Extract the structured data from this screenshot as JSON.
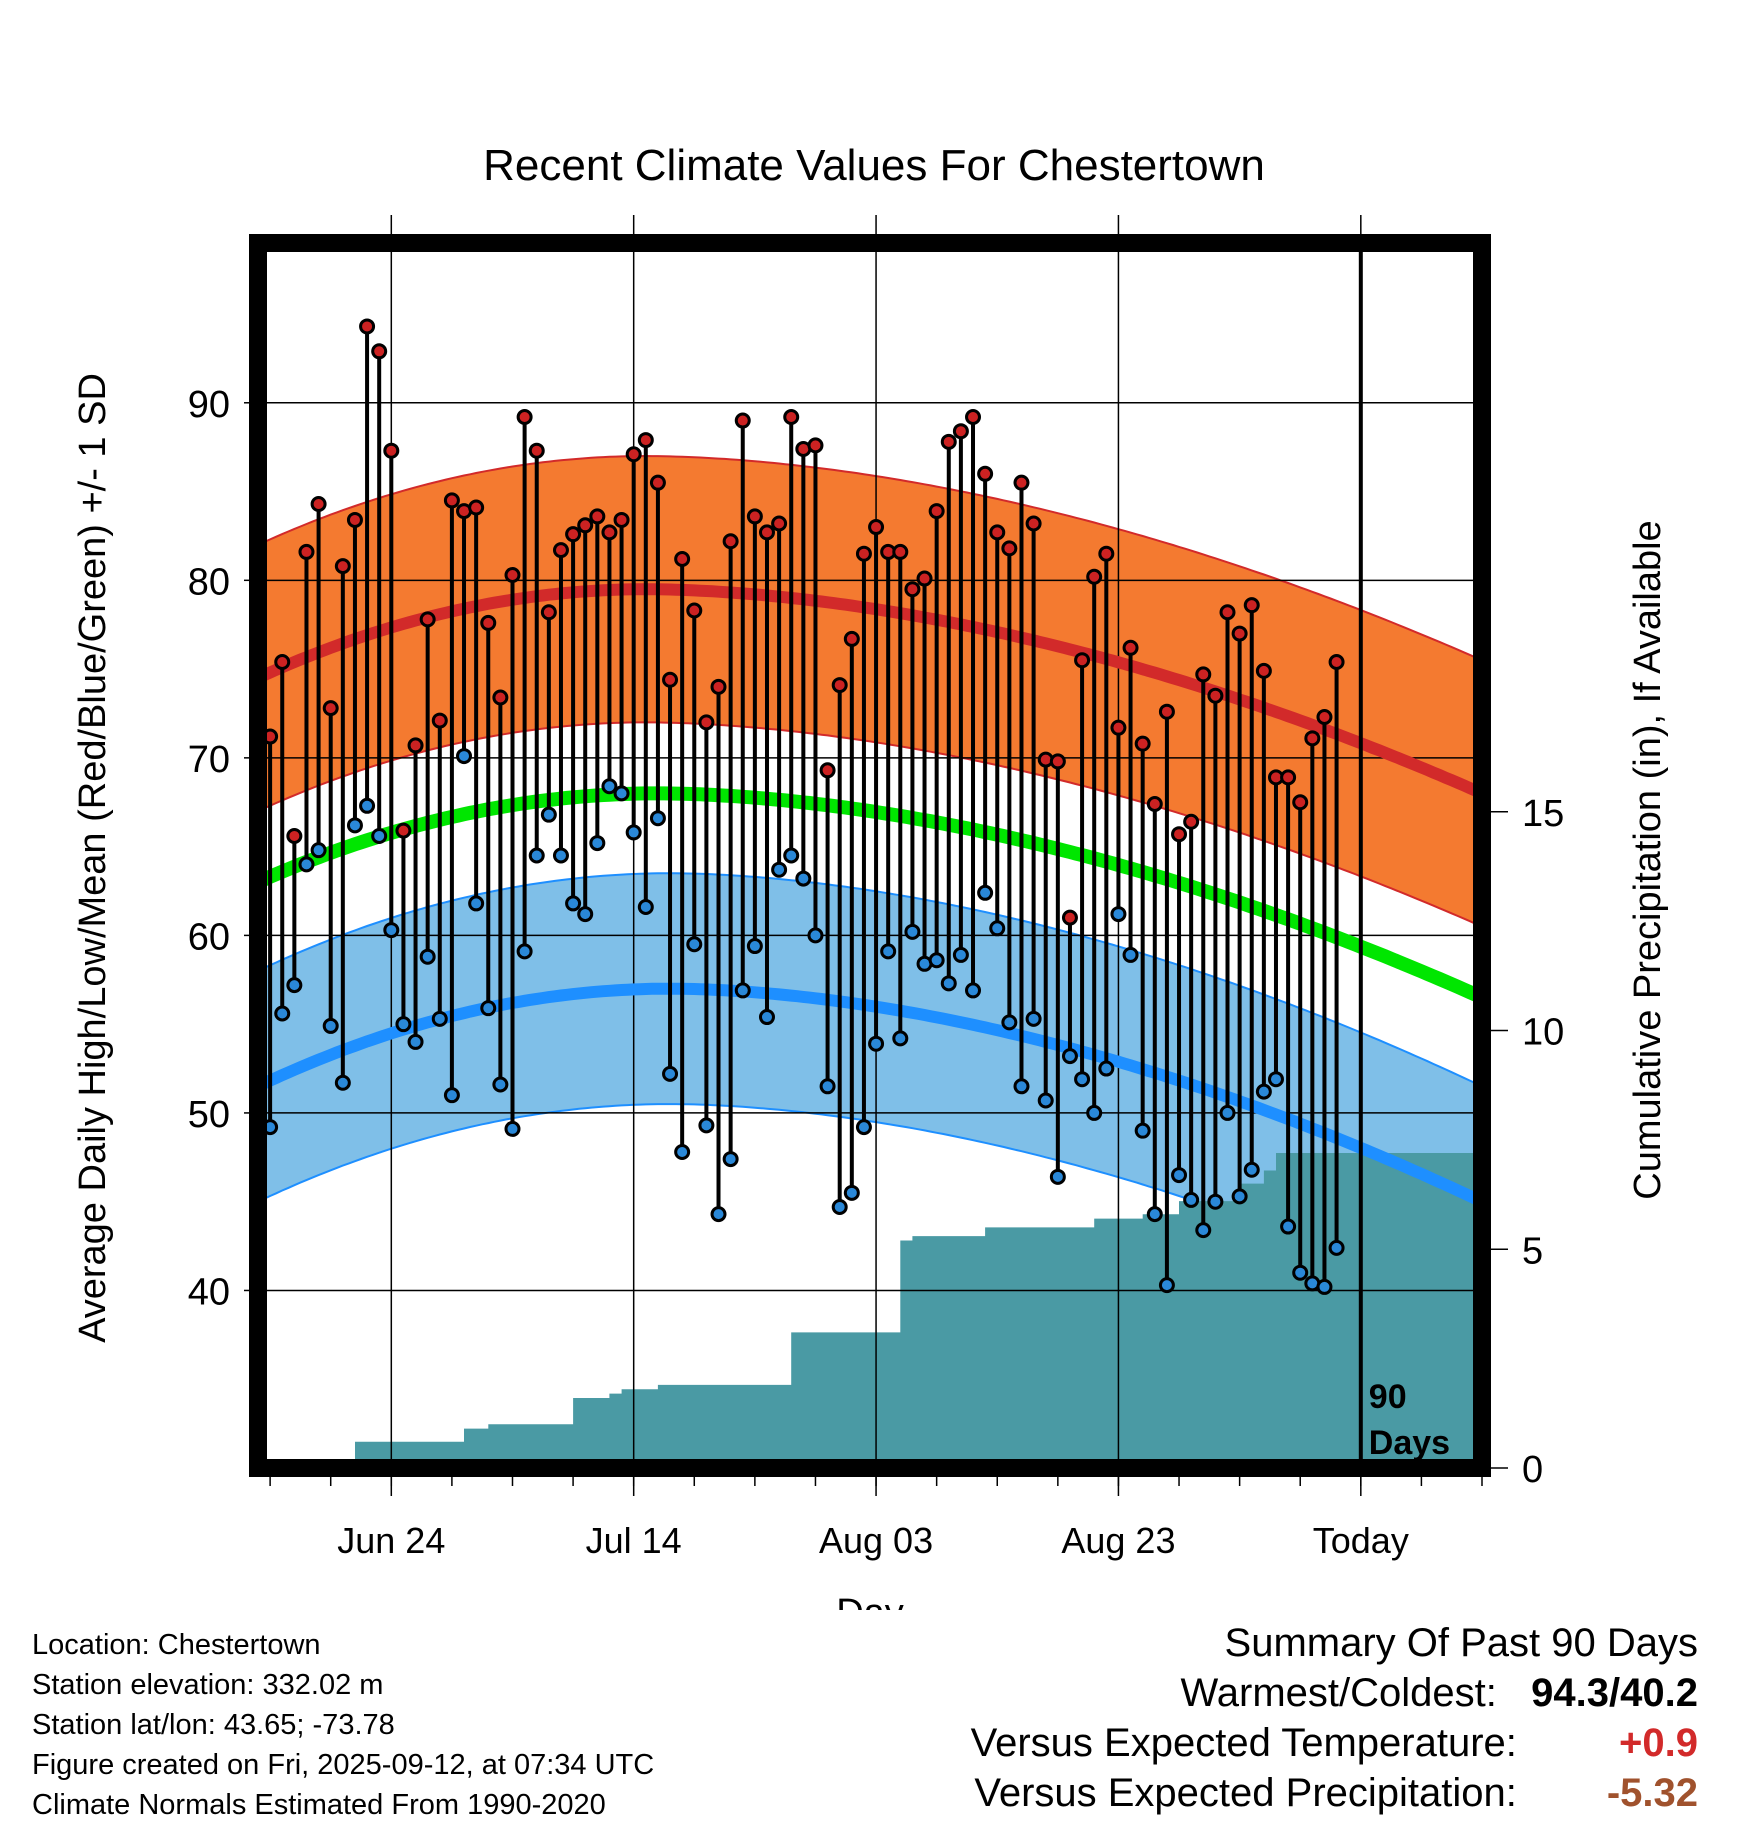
{
  "chart_data": {
    "type": "line",
    "title": "Recent Climate Values For Chestertown",
    "xlabel": "Day",
    "ylabel": "Average Daily High/Low/Mean (Red/Blue/Green) +/- 1 SD",
    "y2label": "Cumulative Precipitation (in), If Available",
    "ylim": [
      30,
      99
    ],
    "y2lim": [
      0,
      28
    ],
    "y_ticks": [
      "40",
      "50",
      "60",
      "70",
      "80",
      "90"
    ],
    "y_tick_values": [
      40,
      50,
      60,
      70,
      80,
      90
    ],
    "y2_ticks": [
      "0",
      "5",
      "10",
      "15"
    ],
    "y2_tick_values": [
      0,
      5,
      10,
      15
    ],
    "x_tick_labels": [
      "Jun 24",
      "Jul 14",
      "Aug 03",
      "Aug 23",
      "Today"
    ],
    "x_tick_days": [
      12,
      32,
      52,
      72,
      92
    ],
    "x_range_days": [
      1,
      102
    ],
    "today_marker_label": "90 Days",
    "colors": {
      "high_band": "#f47a30",
      "high_line": "#d22a2a",
      "low_band": "#7fbfe8",
      "low_line": "#1e8fff",
      "mean_line": "#00e600",
      "precip_fill": "#4a9aa4",
      "high_dot": "#cc2222",
      "low_dot": "#2a88d8"
    },
    "normals": {
      "high_mean_endpoints": {
        "start": 74.5,
        "peak": 79.5,
        "peak_day": 33,
        "end": 68.0
      },
      "high_sd": 7.5,
      "low_mean_endpoints": {
        "start": 51.5,
        "peak": 57.0,
        "peak_day": 35,
        "end": 45.0
      },
      "low_sd": 6.5,
      "mean_line_endpoints": {
        "start": 63.0,
        "peak": 68.0,
        "peak_day": 34,
        "end": 56.5
      }
    },
    "series": [
      {
        "name": "Daily High",
        "values": [
          66.5,
          71.2,
          75.4,
          65.6,
          81.6,
          84.3,
          72.8,
          80.8,
          83.4,
          94.3,
          92.9,
          87.3,
          65.9,
          70.7,
          77.8,
          72.1,
          84.5,
          83.9,
          84.1,
          77.6,
          73.4,
          80.3,
          89.2,
          87.3,
          78.2,
          81.7,
          82.6,
          83.1,
          83.6,
          82.7,
          83.4,
          87.1,
          87.9,
          85.5,
          74.4,
          81.2,
          78.3,
          72.0,
          74.0,
          82.2,
          89.0,
          83.6,
          82.7,
          83.2,
          89.2,
          87.4,
          87.6,
          69.3,
          74.1,
          76.7,
          81.5,
          83.0,
          81.6,
          81.6,
          79.5,
          80.1,
          83.9,
          87.8,
          88.4,
          89.2,
          86.0,
          82.7,
          81.8,
          85.5,
          83.2,
          69.9,
          69.8,
          61.0,
          75.5,
          80.2,
          81.5,
          71.7,
          76.2,
          70.8,
          67.4,
          72.6,
          65.7,
          66.4,
          74.7,
          73.5,
          78.2,
          77.0,
          78.6,
          74.9,
          68.9,
          68.9,
          67.5,
          71.1,
          72.3,
          75.4
        ]
      },
      {
        "name": "Daily Low",
        "values": [
          49.1,
          49.2,
          55.6,
          57.2,
          64.0,
          64.8,
          54.9,
          51.7,
          66.2,
          67.3,
          65.6,
          60.3,
          55.0,
          54.0,
          58.8,
          55.3,
          51.0,
          70.1,
          61.8,
          55.9,
          51.6,
          49.1,
          59.1,
          64.5,
          66.8,
          64.5,
          61.8,
          61.2,
          65.2,
          68.4,
          68.0,
          65.8,
          61.6,
          66.6,
          52.2,
          47.8,
          59.5,
          49.3,
          44.3,
          47.4,
          56.9,
          59.4,
          55.4,
          63.7,
          64.5,
          63.2,
          60.0,
          51.5,
          44.7,
          45.5,
          49.2,
          53.9,
          59.1,
          54.2,
          60.2,
          58.4,
          58.6,
          57.3,
          58.9,
          56.9,
          62.4,
          60.4,
          55.1,
          51.5,
          55.3,
          50.7,
          46.4,
          53.2,
          51.9,
          50.0,
          52.5,
          61.2,
          58.9,
          49.0,
          44.3,
          40.3,
          46.5,
          45.1,
          43.4,
          45.0,
          50.0,
          45.3,
          46.8,
          51.2,
          51.9,
          43.6,
          41.0,
          40.4,
          40.2,
          42.4
        ]
      },
      {
        "name": "Cumulative Precipitation",
        "axis": "secondary",
        "values": [
          0.0,
          0.0,
          0.0,
          0.0,
          0.0,
          0.0,
          0.0,
          0.0,
          0.6,
          0.6,
          0.6,
          0.6,
          0.6,
          0.6,
          0.6,
          0.6,
          0.6,
          0.9,
          0.9,
          1.0,
          1.0,
          1.0,
          1.0,
          1.0,
          1.0,
          1.0,
          1.6,
          1.6,
          1.6,
          1.7,
          1.8,
          1.8,
          1.8,
          1.9,
          1.9,
          1.9,
          1.9,
          1.9,
          1.9,
          1.9,
          1.9,
          1.9,
          1.9,
          1.9,
          3.1,
          3.1,
          3.1,
          3.1,
          3.1,
          3.1,
          3.1,
          3.1,
          3.1,
          5.2,
          5.3,
          5.3,
          5.3,
          5.3,
          5.3,
          5.3,
          5.5,
          5.5,
          5.5,
          5.5,
          5.5,
          5.5,
          5.5,
          5.5,
          5.5,
          5.7,
          5.7,
          5.7,
          5.7,
          5.8,
          5.8,
          5.8,
          6.1,
          6.1,
          6.1,
          6.1,
          6.1,
          6.5,
          6.5,
          6.8,
          7.2,
          7.2,
          7.2,
          7.2,
          7.2,
          7.2
        ]
      }
    ]
  },
  "footer": {
    "location": "Location: Chestertown",
    "elevation": "Station elevation: 332.02 m",
    "latlon": "Station lat/lon: 43.65; -73.78",
    "created": "Figure created on Fri, 2025-09-12, at 07:34 UTC",
    "normals": "Climate Normals Estimated From 1990-2020"
  },
  "summary": {
    "heading": "Summary Of Past 90 Days",
    "warm_cold_label": "Warmest/Coldest:",
    "warm_cold_value": "94.3/40.2",
    "temp_label": "Versus Expected Temperature:",
    "temp_value": "+0.9",
    "temp_color": "#d22a2a",
    "precip_label": "Versus Expected Precipitation:",
    "precip_value": "-5.32",
    "precip_color": "#a0522d"
  }
}
